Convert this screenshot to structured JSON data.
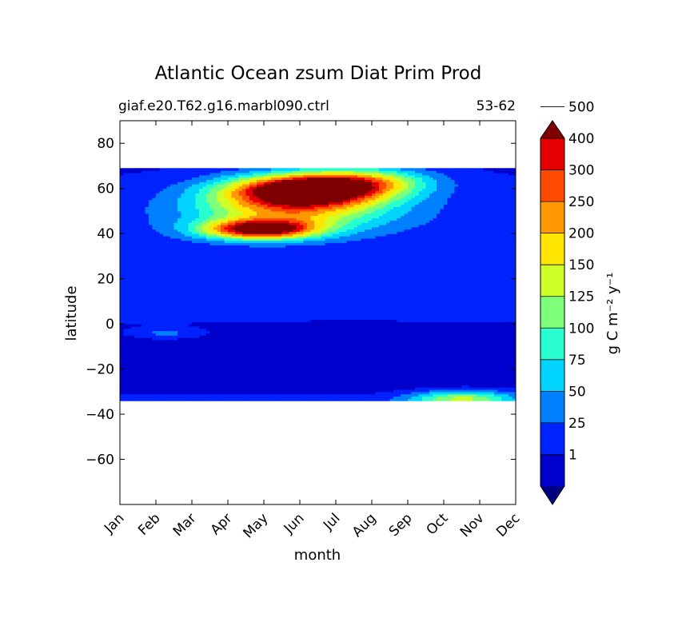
{
  "chart_data": {
    "type": "heatmap",
    "title": "Atlantic Ocean zsum Diat Prim Prod",
    "subtitle_left": "giaf.e20.T62.g16.marbl090.ctrl",
    "subtitle_right": "53-62",
    "xlabel": "month",
    "ylabel": "latitude",
    "x_categories": [
      "Jan",
      "Feb",
      "Mar",
      "Apr",
      "May",
      "Jun",
      "Jul",
      "Aug",
      "Sep",
      "Oct",
      "Nov",
      "Dec"
    ],
    "y_ticks": [
      80,
      60,
      40,
      20,
      0,
      -20,
      -40,
      -60
    ],
    "ylim": [
      -80,
      90
    ],
    "data_lat_range": [
      -34,
      69
    ],
    "colorbar": {
      "label": "g C m⁻² y⁻¹",
      "levels": [
        1,
        25,
        50,
        75,
        100,
        125,
        150,
        200,
        250,
        300,
        400,
        500
      ],
      "tick_labels": [
        "1",
        "25",
        "50",
        "75",
        "100",
        "125",
        "150",
        "200",
        "250",
        "300",
        "400",
        "500"
      ],
      "colors": [
        "#00007f",
        "#0000cd",
        "#0022ff",
        "#0080ff",
        "#00d4ff",
        "#29ffce",
        "#7dff7a",
        "#ceff29",
        "#ffe500",
        "#ff9800",
        "#ff4a00",
        "#e50000",
        "#7f0000"
      ],
      "extend": "both"
    },
    "grid": false,
    "background_level": 1,
    "features": [
      {
        "name": "north-atlantic-bloom",
        "month_start": 2.5,
        "month_end": 8.5,
        "lat_min": 37,
        "lat_max": 66,
        "peak_month": 5.3,
        "peak_lat": 60,
        "peak_level": 12
      },
      {
        "name": "secondary-bloom",
        "month_start": 3.0,
        "month_end": 5.0,
        "lat_min": 39,
        "lat_max": 45,
        "peak_month": 3.8,
        "peak_lat": 42,
        "peak_level": 11
      },
      {
        "name": "south-atlantic-spring",
        "month_start": 7.5,
        "month_end": 11.0,
        "lat_min": -34,
        "lat_max": -28,
        "peak_month": 9.5,
        "peak_lat": -33,
        "peak_level": 6
      },
      {
        "name": "tropical-minimum",
        "month_start": 3.0,
        "month_end": 10.0,
        "lat_min": -30,
        "lat_max": -5,
        "peak_level": 1
      }
    ]
  }
}
